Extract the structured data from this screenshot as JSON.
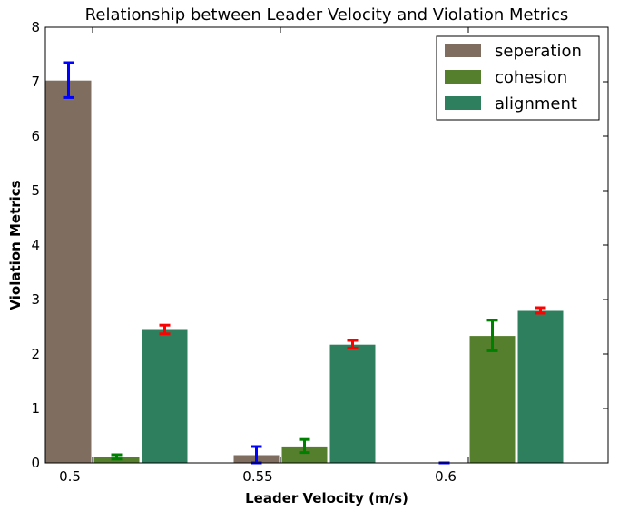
{
  "chart_data": {
    "type": "bar",
    "title": "Relationship between Leader Velocity and Violation Metrics",
    "xlabel": "Leader Velocity (m/s)",
    "ylabel": "Violation Metrics",
    "categories": [
      "0.5",
      "0.55",
      "0.6"
    ],
    "ylim": [
      0,
      8
    ],
    "yticks": [
      0,
      1,
      2,
      3,
      4,
      5,
      6,
      7,
      8
    ],
    "grid": false,
    "legend_position": "top-right",
    "series": [
      {
        "name": "seperation",
        "color": "#7f6d5f",
        "error_color": "#0000ff",
        "values": [
          7.03,
          0.15,
          0.0
        ],
        "errors": [
          0.32,
          0.15,
          0.0
        ]
      },
      {
        "name": "cohesion",
        "color": "#557f2d",
        "error_color": "#008000",
        "values": [
          0.11,
          0.31,
          2.34
        ],
        "errors": [
          0.04,
          0.12,
          0.28
        ]
      },
      {
        "name": "alignment",
        "color": "#2d7f5e",
        "error_color": "#ff0000",
        "values": [
          2.45,
          2.18,
          2.8
        ],
        "errors": [
          0.08,
          0.07,
          0.05
        ]
      }
    ]
  }
}
